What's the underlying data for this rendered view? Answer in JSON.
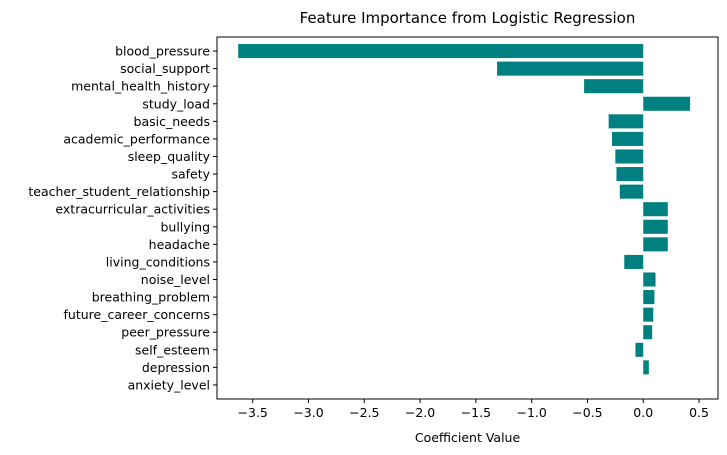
{
  "chart_data": {
    "type": "bar",
    "orientation": "horizontal",
    "title": "Feature Importance from Logistic Regression",
    "xlabel": "Coefficient Value",
    "ylabel": "",
    "xlim": [
      -3.82,
      0.67
    ],
    "xticks": [
      -3.5,
      -3.0,
      -2.5,
      -2.0,
      -1.5,
      -1.0,
      -0.5,
      0.0,
      0.5
    ],
    "xtick_labels": [
      "−3.5",
      "−3.0",
      "−2.5",
      "−2.0",
      "−1.5",
      "−1.0",
      "−0.5",
      "0.0",
      "0.5"
    ],
    "grid": false,
    "bar_color": "#008080",
    "categories": [
      "blood_pressure",
      "social_support",
      "mental_health_history",
      "study_load",
      "basic_needs",
      "academic_performance",
      "sleep_quality",
      "safety",
      "teacher_student_relationship",
      "extracurricular_activities",
      "bullying",
      "headache",
      "living_conditions",
      "noise_level",
      "breathing_problem",
      "future_career_concerns",
      "peer_pressure",
      "self_esteem",
      "depression",
      "anxiety_level"
    ],
    "values": [
      -3.63,
      -1.31,
      -0.53,
      0.42,
      -0.31,
      -0.28,
      -0.25,
      -0.24,
      -0.21,
      0.22,
      0.22,
      0.22,
      -0.17,
      0.11,
      0.1,
      0.09,
      0.08,
      -0.07,
      0.05,
      0.0
    ]
  }
}
